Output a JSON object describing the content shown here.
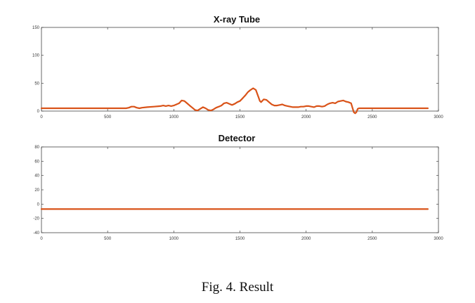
{
  "caption": "Fig. 4.   Result",
  "chart_data": [
    {
      "type": "line",
      "title": "X-ray Tube",
      "xlim": [
        0,
        3000
      ],
      "ylim": [
        0,
        150
      ],
      "xticks": [
        0,
        500,
        1000,
        1500,
        2000,
        2500,
        3000
      ],
      "yticks": [
        0,
        50,
        100,
        150
      ],
      "color": "#d95319",
      "series": [
        {
          "x": [
            0,
            100,
            200,
            300,
            400,
            500,
            600,
            640,
            660,
            680,
            700,
            720,
            740,
            760,
            800,
            850,
            900,
            920,
            940,
            960,
            980,
            1000,
            1020,
            1040,
            1060,
            1080,
            1100,
            1120,
            1140,
            1160,
            1180,
            1200,
            1220,
            1240,
            1260,
            1280,
            1300,
            1320,
            1340,
            1360,
            1380,
            1400,
            1420,
            1440,
            1460,
            1480,
            1500,
            1520,
            1540,
            1560,
            1580,
            1600,
            1620,
            1640,
            1650,
            1660,
            1680,
            1700,
            1720,
            1740,
            1760,
            1780,
            1800,
            1820,
            1840,
            1860,
            1880,
            1900,
            1920,
            1940,
            1960,
            1980,
            2000,
            2020,
            2040,
            2060,
            2080,
            2100,
            2120,
            2140,
            2160,
            2180,
            2200,
            2220,
            2240,
            2260,
            2280,
            2300,
            2320,
            2340,
            2360,
            2370,
            2380,
            2390,
            2400,
            2420,
            2450,
            2500,
            2600,
            2700,
            2800,
            2920
          ],
          "y": [
            5,
            5,
            5,
            5,
            5,
            5,
            5,
            5,
            6,
            8,
            8,
            6,
            5,
            6,
            7,
            8,
            9,
            10,
            9,
            10,
            9,
            10,
            12,
            14,
            19,
            18,
            14,
            10,
            6,
            2,
            1,
            4,
            7,
            5,
            2,
            1,
            3,
            6,
            8,
            10,
            14,
            15,
            13,
            11,
            13,
            16,
            18,
            23,
            28,
            34,
            38,
            41,
            38,
            25,
            18,
            16,
            21,
            20,
            16,
            12,
            10,
            10,
            11,
            12,
            10,
            9,
            8,
            7,
            7,
            7,
            8,
            8,
            9,
            9,
            8,
            7,
            9,
            9,
            8,
            9,
            12,
            14,
            15,
            14,
            17,
            18,
            19,
            17,
            16,
            14,
            -2,
            -4,
            -2,
            4,
            5,
            5,
            5,
            5,
            5,
            5,
            5,
            5
          ]
        }
      ]
    },
    {
      "type": "line",
      "title": "Detector",
      "xlim": [
        0,
        3000
      ],
      "ylim": [
        -40,
        80
      ],
      "xticks": [
        0,
        500,
        1000,
        1500,
        2000,
        2500,
        3000
      ],
      "yticks": [
        -40,
        -20,
        0,
        20,
        40,
        60,
        80
      ],
      "color": "#d95319",
      "series": [
        {
          "x": [
            0,
            500,
            1000,
            1500,
            2000,
            2500,
            2920
          ],
          "y": [
            -7,
            -7,
            -7,
            -7,
            -7,
            -7,
            -7
          ]
        }
      ]
    }
  ]
}
